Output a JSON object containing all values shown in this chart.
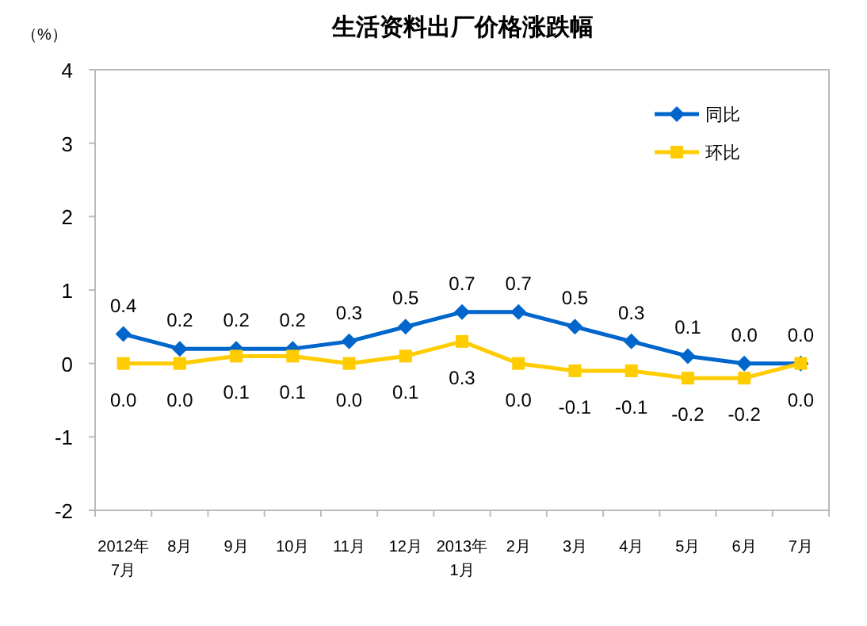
{
  "chart_data": {
    "type": "line",
    "title": "生活资料出厂价格涨跌幅",
    "ylabel": "（%）",
    "categories": [
      "2012年\n7月",
      "8月",
      "9月",
      "10月",
      "11月",
      "12月",
      "2013年\n1月",
      "2月",
      "3月",
      "4月",
      "5月",
      "6月",
      "7月"
    ],
    "series": [
      {
        "name": "同比",
        "color": "#0066cc",
        "marker": "diamond",
        "values": [
          0.4,
          0.2,
          0.2,
          0.2,
          0.3,
          0.5,
          0.7,
          0.7,
          0.5,
          0.3,
          0.1,
          0.0,
          0.0
        ],
        "value_labels": [
          "0.4",
          "0.2",
          "0.2",
          "0.2",
          "0.3",
          "0.5",
          "0.7",
          "0.7",
          "0.5",
          "0.3",
          "0.1",
          "0.0",
          "0.0"
        ]
      },
      {
        "name": "环比",
        "color": "#ffcc00",
        "marker": "square",
        "values": [
          0.0,
          0.0,
          0.1,
          0.1,
          0.0,
          0.1,
          0.3,
          0.0,
          -0.1,
          -0.1,
          -0.2,
          -0.2,
          0.0
        ],
        "value_labels": [
          "0.0",
          "0.0",
          "0.1",
          "0.1",
          "0.0",
          "0.1",
          "0.3",
          "0.0",
          "-0.1",
          "-0.1",
          "-0.2",
          "-0.2",
          "0.0"
        ]
      }
    ],
    "ylim": [
      -2,
      4
    ],
    "yticks": [
      -2,
      -1,
      0,
      1,
      2,
      3,
      4
    ],
    "legend": "top right",
    "grid": false
  }
}
